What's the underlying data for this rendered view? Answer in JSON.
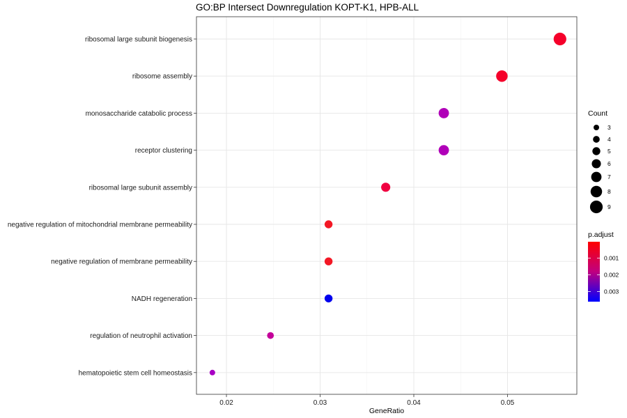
{
  "chart_data": {
    "type": "scatter",
    "title": "GO:BP Intersect Downregulation KOPT-K1, HPB-ALL",
    "xlabel": "GeneRatio",
    "ylabel": "",
    "xlim": [
      0.0168,
      0.0574
    ],
    "xticks": [
      0.02,
      0.03,
      0.04,
      0.05
    ],
    "xtick_labels": [
      "0.02",
      "0.03",
      "0.04",
      "0.05"
    ],
    "grid": true,
    "categories": [
      "ribosomal large subunit biogenesis",
      "ribosome assembly",
      "monosaccharide catabolic process",
      "receptor clustering",
      "ribosomal large subunit assembly",
      "negative regulation of mitochondrial membrane permeability",
      "negative regulation of membrane permeability",
      "NADH regeneration",
      "regulation of neutrophil activation",
      "hematopoietic stem cell homeostasis"
    ],
    "points": [
      {
        "term": "ribosomal large subunit biogenesis",
        "gene_ratio": 0.0556,
        "count": 9,
        "p_adjust": 2e-05,
        "color": "#f5002a"
      },
      {
        "term": "ribosome assembly",
        "gene_ratio": 0.0494,
        "count": 8,
        "p_adjust": 2e-05,
        "color": "#f5002a"
      },
      {
        "term": "monosaccharide catabolic process",
        "gene_ratio": 0.0432,
        "count": 7,
        "p_adjust": 0.0021,
        "color": "#b000b8"
      },
      {
        "term": "receptor clustering",
        "gene_ratio": 0.0432,
        "count": 7,
        "p_adjust": 0.0021,
        "color": "#b000b8"
      },
      {
        "term": "ribosomal large subunit assembly",
        "gene_ratio": 0.037,
        "count": 6,
        "p_adjust": 0.0004,
        "color": "#f00040"
      },
      {
        "term": "negative regulation of mitochondrial membrane permeability",
        "gene_ratio": 0.0309,
        "count": 5,
        "p_adjust": 0.0001,
        "color": "#f31825"
      },
      {
        "term": "negative regulation of membrane permeability",
        "gene_ratio": 0.0309,
        "count": 5,
        "p_adjust": 0.0001,
        "color": "#f31825"
      },
      {
        "term": "NADH regeneration",
        "gene_ratio": 0.0309,
        "count": 5,
        "p_adjust": 0.0035,
        "color": "#0000ee"
      },
      {
        "term": "regulation of neutrophil activation",
        "gene_ratio": 0.0247,
        "count": 4,
        "p_adjust": 0.0017,
        "color": "#c4009a"
      },
      {
        "term": "hematopoietic stem cell homeostasis",
        "gene_ratio": 0.0185,
        "count": 3,
        "p_adjust": 0.0023,
        "color": "#a800c4"
      }
    ],
    "legend": {
      "placement": "right",
      "size_title": "Count",
      "size_values": [
        3,
        4,
        5,
        6,
        7,
        8,
        9
      ],
      "size_labels": [
        "3",
        "4",
        "5",
        "6",
        "7",
        "8",
        "9"
      ],
      "color_title": "p.adjust",
      "color_range": [
        2e-05,
        0.0036
      ],
      "color_ticks": [
        0.001,
        0.002,
        0.003
      ],
      "color_tick_labels": [
        "0.001",
        "0.002",
        "0.003"
      ],
      "color_low": "#ff0000",
      "color_high": "#0000ff"
    }
  }
}
